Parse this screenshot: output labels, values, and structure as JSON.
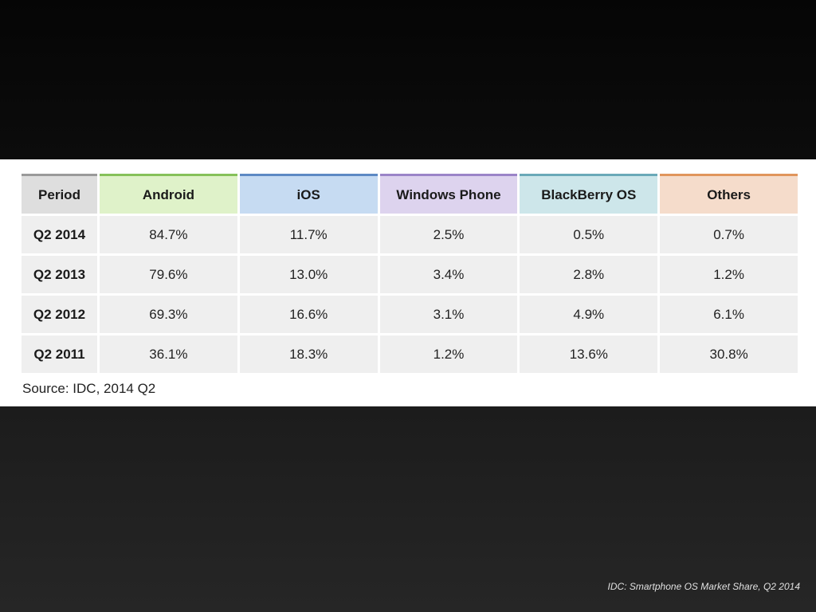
{
  "chart_data": {
    "type": "table",
    "columns": [
      {
        "label": "Period",
        "bg": "#dedede",
        "accent": "#9a9a9a"
      },
      {
        "label": "Android",
        "bg": "#dff2c9",
        "accent": "#86c15a"
      },
      {
        "label": "iOS",
        "bg": "#c6dbf2",
        "accent": "#5d89c4"
      },
      {
        "label": "Windows Phone",
        "bg": "#ddd3ee",
        "accent": "#9b84c8"
      },
      {
        "label": "BlackBerry OS",
        "bg": "#cde6ea",
        "accent": "#6aa9b8"
      },
      {
        "label": "Others",
        "bg": "#f5dccb",
        "accent": "#e0955c"
      }
    ],
    "rows": [
      {
        "period": "Q2 2014",
        "values": [
          "84.7%",
          "11.7%",
          "2.5%",
          "0.5%",
          "0.7%"
        ]
      },
      {
        "period": "Q2 2013",
        "values": [
          "79.6%",
          "13.0%",
          "3.4%",
          "2.8%",
          "1.2%"
        ]
      },
      {
        "period": "Q2 2012",
        "values": [
          "69.3%",
          "16.6%",
          "3.1%",
          "4.9%",
          "6.1%"
        ]
      },
      {
        "period": "Q2 2011",
        "values": [
          "36.1%",
          "18.3%",
          "1.2%",
          "13.6%",
          "30.8%"
        ]
      }
    ],
    "source": "Source: IDC, 2014 Q2"
  },
  "footer": {
    "caption": "IDC: Smartphone OS Market Share, Q2 2014"
  }
}
